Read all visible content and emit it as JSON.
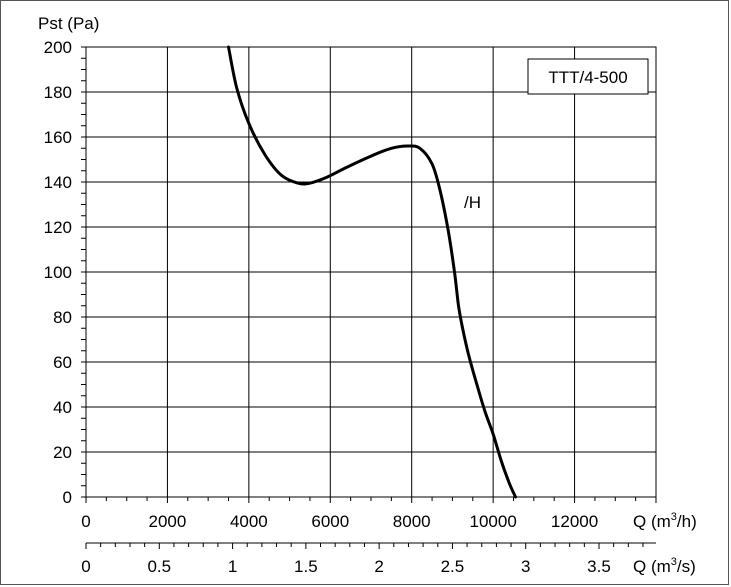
{
  "chart_data": {
    "type": "line",
    "ylabel": "Pst (Pa)",
    "xlabel_primary": "Q (m³/h)",
    "xlabel_primary_base": "Q (m",
    "xlabel_primary_sup": "3",
    "xlabel_primary_tail": "/h)",
    "xlabel_secondary": "Q (m³/s)",
    "xlabel_secondary_base": "Q (m",
    "xlabel_secondary_sup": "3",
    "xlabel_secondary_tail": "/s)",
    "xlim": [
      0,
      14000
    ],
    "ylim": [
      0,
      200
    ],
    "x_ticks": [
      0,
      2000,
      4000,
      6000,
      8000,
      10000,
      12000
    ],
    "x_tick_labels": [
      "0",
      "2000",
      "4000",
      "6000",
      "8000",
      "10000",
      "12000"
    ],
    "y_ticks": [
      0,
      20,
      40,
      60,
      80,
      100,
      120,
      140,
      160,
      180,
      200
    ],
    "y_tick_labels": [
      "0",
      "20",
      "40",
      "60",
      "80",
      "100",
      "120",
      "140",
      "160",
      "180",
      "200"
    ],
    "x2_ticks": [
      0,
      0.5,
      1,
      1.5,
      2,
      2.5,
      3,
      3.5
    ],
    "x2_tick_labels": [
      "0",
      "0.5",
      "1",
      "1.5",
      "2",
      "2.5",
      "3",
      "3.5"
    ],
    "grid": true,
    "legend_box": "TTT/4-500",
    "series": [
      {
        "name": "/H",
        "x": [
          3500,
          3700,
          4000,
          4400,
          4800,
          5200,
          5500,
          5900,
          6400,
          7000,
          7500,
          7900,
          8200,
          8500,
          8700,
          8900,
          9050,
          9150,
          9250,
          9400,
          9600,
          9800,
          10000,
          10200,
          10400,
          10550
        ],
        "y": [
          200,
          182,
          166,
          152,
          143,
          139.5,
          139.5,
          142,
          146.5,
          151.5,
          155,
          156,
          155,
          148,
          136,
          118,
          100,
          85,
          75,
          63,
          50,
          38,
          28,
          16,
          6,
          0
        ]
      }
    ]
  }
}
